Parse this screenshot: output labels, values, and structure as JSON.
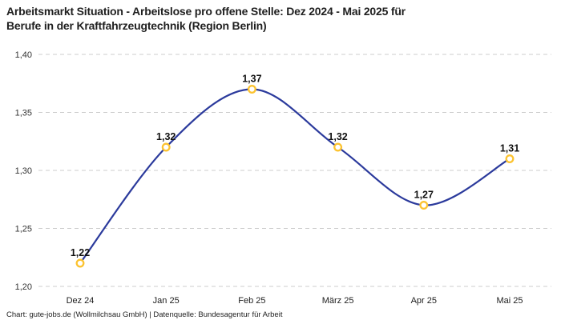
{
  "header": {
    "title_lines": [
      "Arbeitsmarkt Situation - Arbeitslose pro offene Stelle: Dez 2024 - Mai 2025 für",
      "Berufe in der Kraftfahrzeugtechnik (Region Berlin)"
    ]
  },
  "footer": {
    "credit": "Chart: gute-jobs.de (Wollmilchsau GmbH) | Datenquelle: Bundesagentur für Arbeit"
  },
  "chart_data": {
    "type": "line",
    "title": "Arbeitsmarkt Situation - Arbeitslose pro offene Stelle: Dez 2024 - Mai 2025 für Berufe in der Kraftfahrzeugtechnik (Region Berlin)",
    "categories": [
      "Dez 24",
      "Jan 25",
      "Feb 25",
      "März 25",
      "Apr 25",
      "Mai 25"
    ],
    "values": [
      1.22,
      1.32,
      1.37,
      1.32,
      1.27,
      1.31
    ],
    "value_labels": [
      "1,22",
      "1,32",
      "1,37",
      "1,32",
      "1,27",
      "1,31"
    ],
    "ylim": [
      1.2,
      1.4
    ],
    "y_ticks": [
      1.4,
      1.35,
      1.3,
      1.25,
      1.2
    ],
    "y_tick_labels": [
      "1,40",
      "1,35",
      "1,30",
      "1,25",
      "1,20"
    ],
    "xlabel": "",
    "ylabel": "",
    "grid": "horizontal-dashed",
    "legend": "none",
    "smooth": true,
    "line_color": "#2b3a9c",
    "marker_stroke_color": "#fcc330",
    "marker_fill_color": "#ffffff",
    "grid_color": "#cccccc"
  }
}
